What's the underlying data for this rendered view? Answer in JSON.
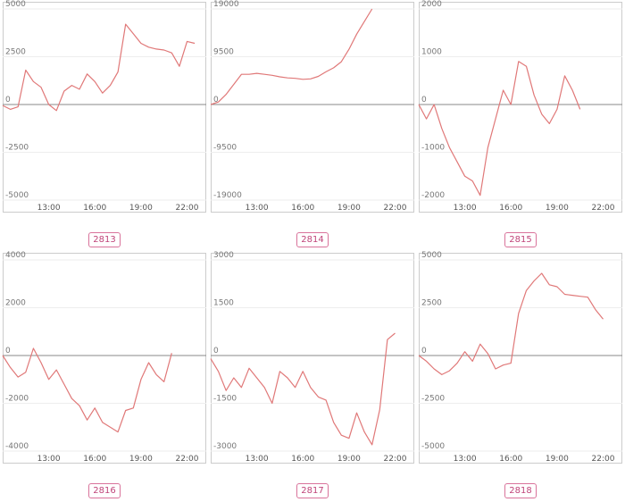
{
  "chart_data": [
    {
      "type": "line",
      "title": "2813",
      "x_ticks": [
        "13:00",
        "16:00",
        "19:00",
        "22:00"
      ],
      "y_ticks": [
        "5000",
        "2500",
        "0",
        "-2500",
        "-5000"
      ],
      "y_tick_values": [
        5000,
        2500,
        0,
        -2500,
        -5000
      ],
      "ylim": [
        -5000,
        5000
      ],
      "xlim": [
        "10:00",
        "23:15"
      ],
      "x": [
        "10:00",
        "10:30",
        "11:00",
        "11:30",
        "12:00",
        "12:30",
        "13:00",
        "13:30",
        "14:00",
        "14:30",
        "15:00",
        "15:30",
        "16:00",
        "16:30",
        "17:00",
        "17:30",
        "18:00",
        "18:30",
        "19:00",
        "19:30",
        "20:00",
        "20:30",
        "21:00",
        "21:30",
        "22:00",
        "22:30",
        "23:00"
      ],
      "values": [
        -50,
        -250,
        -120,
        1800,
        1200,
        900,
        0,
        -320,
        700,
        1000,
        800,
        1600,
        1200,
        600,
        1000,
        1700,
        4200,
        3700,
        3200,
        3000,
        2900,
        2850,
        2700,
        2000,
        3300,
        3200,
        null
      ],
      "grid": true,
      "zero_line": true,
      "color": "#e07878"
    },
    {
      "type": "line",
      "title": "2814",
      "x_ticks": [
        "13:00",
        "16:00",
        "19:00",
        "22:00"
      ],
      "y_ticks": [
        "19000",
        "9500",
        "0",
        "-9500",
        "-19000"
      ],
      "y_tick_values": [
        19000,
        9500,
        0,
        -9500,
        -19000
      ],
      "ylim": [
        -19000,
        19000
      ],
      "xlim": [
        "10:00",
        "23:15"
      ],
      "x": [
        "10:00",
        "10:30",
        "11:00",
        "11:30",
        "12:00",
        "12:30",
        "13:00",
        "13:30",
        "14:00",
        "14:30",
        "15:00",
        "15:30",
        "16:00",
        "16:30",
        "17:00",
        "17:30",
        "18:00",
        "18:30",
        "19:00",
        "19:30",
        "20:00",
        "20:30"
      ],
      "values": [
        0,
        500,
        2000,
        4000,
        6000,
        6000,
        6200,
        6000,
        5800,
        5500,
        5300,
        5200,
        5000,
        5100,
        5600,
        6500,
        7300,
        8500,
        11000,
        14000,
        16500,
        19000
      ],
      "grid": true,
      "zero_line": true,
      "color": "#e07878"
    },
    {
      "type": "line",
      "title": "2815",
      "x_ticks": [
        "13:00",
        "16:00",
        "19:00",
        "22:00"
      ],
      "y_ticks": [
        "2000",
        "1000",
        "0",
        "-1000",
        "-2000"
      ],
      "y_tick_values": [
        2000,
        1000,
        0,
        -1000,
        -2000
      ],
      "ylim": [
        -2000,
        2000
      ],
      "xlim": [
        "10:00",
        "23:15"
      ],
      "x": [
        "10:00",
        "10:30",
        "11:00",
        "11:30",
        "12:00",
        "12:30",
        "13:00",
        "13:30",
        "14:00",
        "14:30",
        "15:00",
        "15:30",
        "16:00",
        "16:30",
        "17:00",
        "17:30",
        "18:00",
        "18:30",
        "19:00",
        "19:30",
        "20:00",
        "20:30",
        "21:00"
      ],
      "values": [
        0,
        -300,
        0,
        -500,
        -900,
        -1200,
        -1500,
        -1600,
        -1900,
        -900,
        -300,
        300,
        0,
        900,
        800,
        200,
        -200,
        -400,
        -100,
        600,
        300,
        -100,
        null
      ],
      "grid": true,
      "zero_line": true,
      "color": "#e07878"
    },
    {
      "type": "line",
      "title": "2816",
      "x_ticks": [
        "13:00",
        "16:00",
        "19:00",
        "22:00"
      ],
      "y_ticks": [
        "4000",
        "2000",
        "0",
        "-2000",
        "-4000"
      ],
      "y_tick_values": [
        4000,
        2000,
        0,
        -2000,
        -4000
      ],
      "ylim": [
        -4000,
        4000
      ],
      "xlim": [
        "10:00",
        "23:15"
      ],
      "x": [
        "10:00",
        "10:30",
        "11:00",
        "11:30",
        "12:00",
        "12:30",
        "13:00",
        "13:30",
        "14:00",
        "14:30",
        "15:00",
        "15:30",
        "16:00",
        "16:30",
        "17:00",
        "17:30",
        "18:00",
        "18:30",
        "19:00",
        "19:30",
        "20:00",
        "20:30",
        "21:00",
        "21:30"
      ],
      "values": [
        0,
        -500,
        -900,
        -700,
        300,
        -300,
        -1000,
        -600,
        -1200,
        -1800,
        -2100,
        -2700,
        -2200,
        -2800,
        -3000,
        -3200,
        -2300,
        -2200,
        -1000,
        -300,
        -800,
        -1100,
        100,
        null
      ],
      "grid": true,
      "zero_line": true,
      "color": "#e07878"
    },
    {
      "type": "line",
      "title": "2817",
      "x_ticks": [
        "13:00",
        "16:00",
        "19:00",
        "22:00"
      ],
      "y_ticks": [
        "3000",
        "1500",
        "0",
        "-1500",
        "-3000"
      ],
      "y_tick_values": [
        3000,
        1500,
        0,
        -1500,
        -3000
      ],
      "ylim": [
        -3000,
        3000
      ],
      "xlim": [
        "10:00",
        "23:15"
      ],
      "x": [
        "10:00",
        "10:30",
        "11:00",
        "11:30",
        "12:00",
        "12:30",
        "13:00",
        "13:30",
        "14:00",
        "14:30",
        "15:00",
        "15:30",
        "16:00",
        "16:30",
        "17:00",
        "17:30",
        "18:00",
        "18:30",
        "19:00",
        "19:30",
        "20:00",
        "20:30",
        "21:00",
        "21:30",
        "22:00",
        "22:30"
      ],
      "values": [
        -100,
        -500,
        -1100,
        -700,
        -1000,
        -400,
        -700,
        -1000,
        -1500,
        -500,
        -700,
        -1000,
        -500,
        -1000,
        -1300,
        -1400,
        -2100,
        -2500,
        -2600,
        -1800,
        -2400,
        -2800,
        -1700,
        500,
        700,
        null
      ],
      "grid": true,
      "zero_line": true,
      "color": "#e07878"
    },
    {
      "type": "line",
      "title": "2818",
      "x_ticks": [
        "13:00",
        "16:00",
        "19:00",
        "22:00"
      ],
      "y_ticks": [
        "5000",
        "2500",
        "0",
        "-2500",
        "-5000"
      ],
      "y_tick_values": [
        5000,
        2500,
        0,
        -2500,
        -5000
      ],
      "ylim": [
        -5000,
        5000
      ],
      "xlim": [
        "10:00",
        "23:15"
      ],
      "x": [
        "10:00",
        "10:30",
        "11:00",
        "11:30",
        "12:00",
        "12:30",
        "13:00",
        "13:30",
        "14:00",
        "14:30",
        "15:00",
        "15:30",
        "16:00",
        "16:30",
        "17:00",
        "17:30",
        "18:00",
        "18:30",
        "19:00",
        "19:30",
        "20:00",
        "20:30",
        "21:00",
        "21:30",
        "22:00",
        "22:30"
      ],
      "values": [
        0,
        -300,
        -700,
        -1000,
        -800,
        -400,
        200,
        -300,
        600,
        100,
        -700,
        -500,
        -400,
        2200,
        3400,
        3900,
        4300,
        3700,
        3600,
        3200,
        3150,
        3100,
        3050,
        2400,
        1900,
        null
      ],
      "grid": true,
      "zero_line": true,
      "color": "#e07878"
    }
  ]
}
